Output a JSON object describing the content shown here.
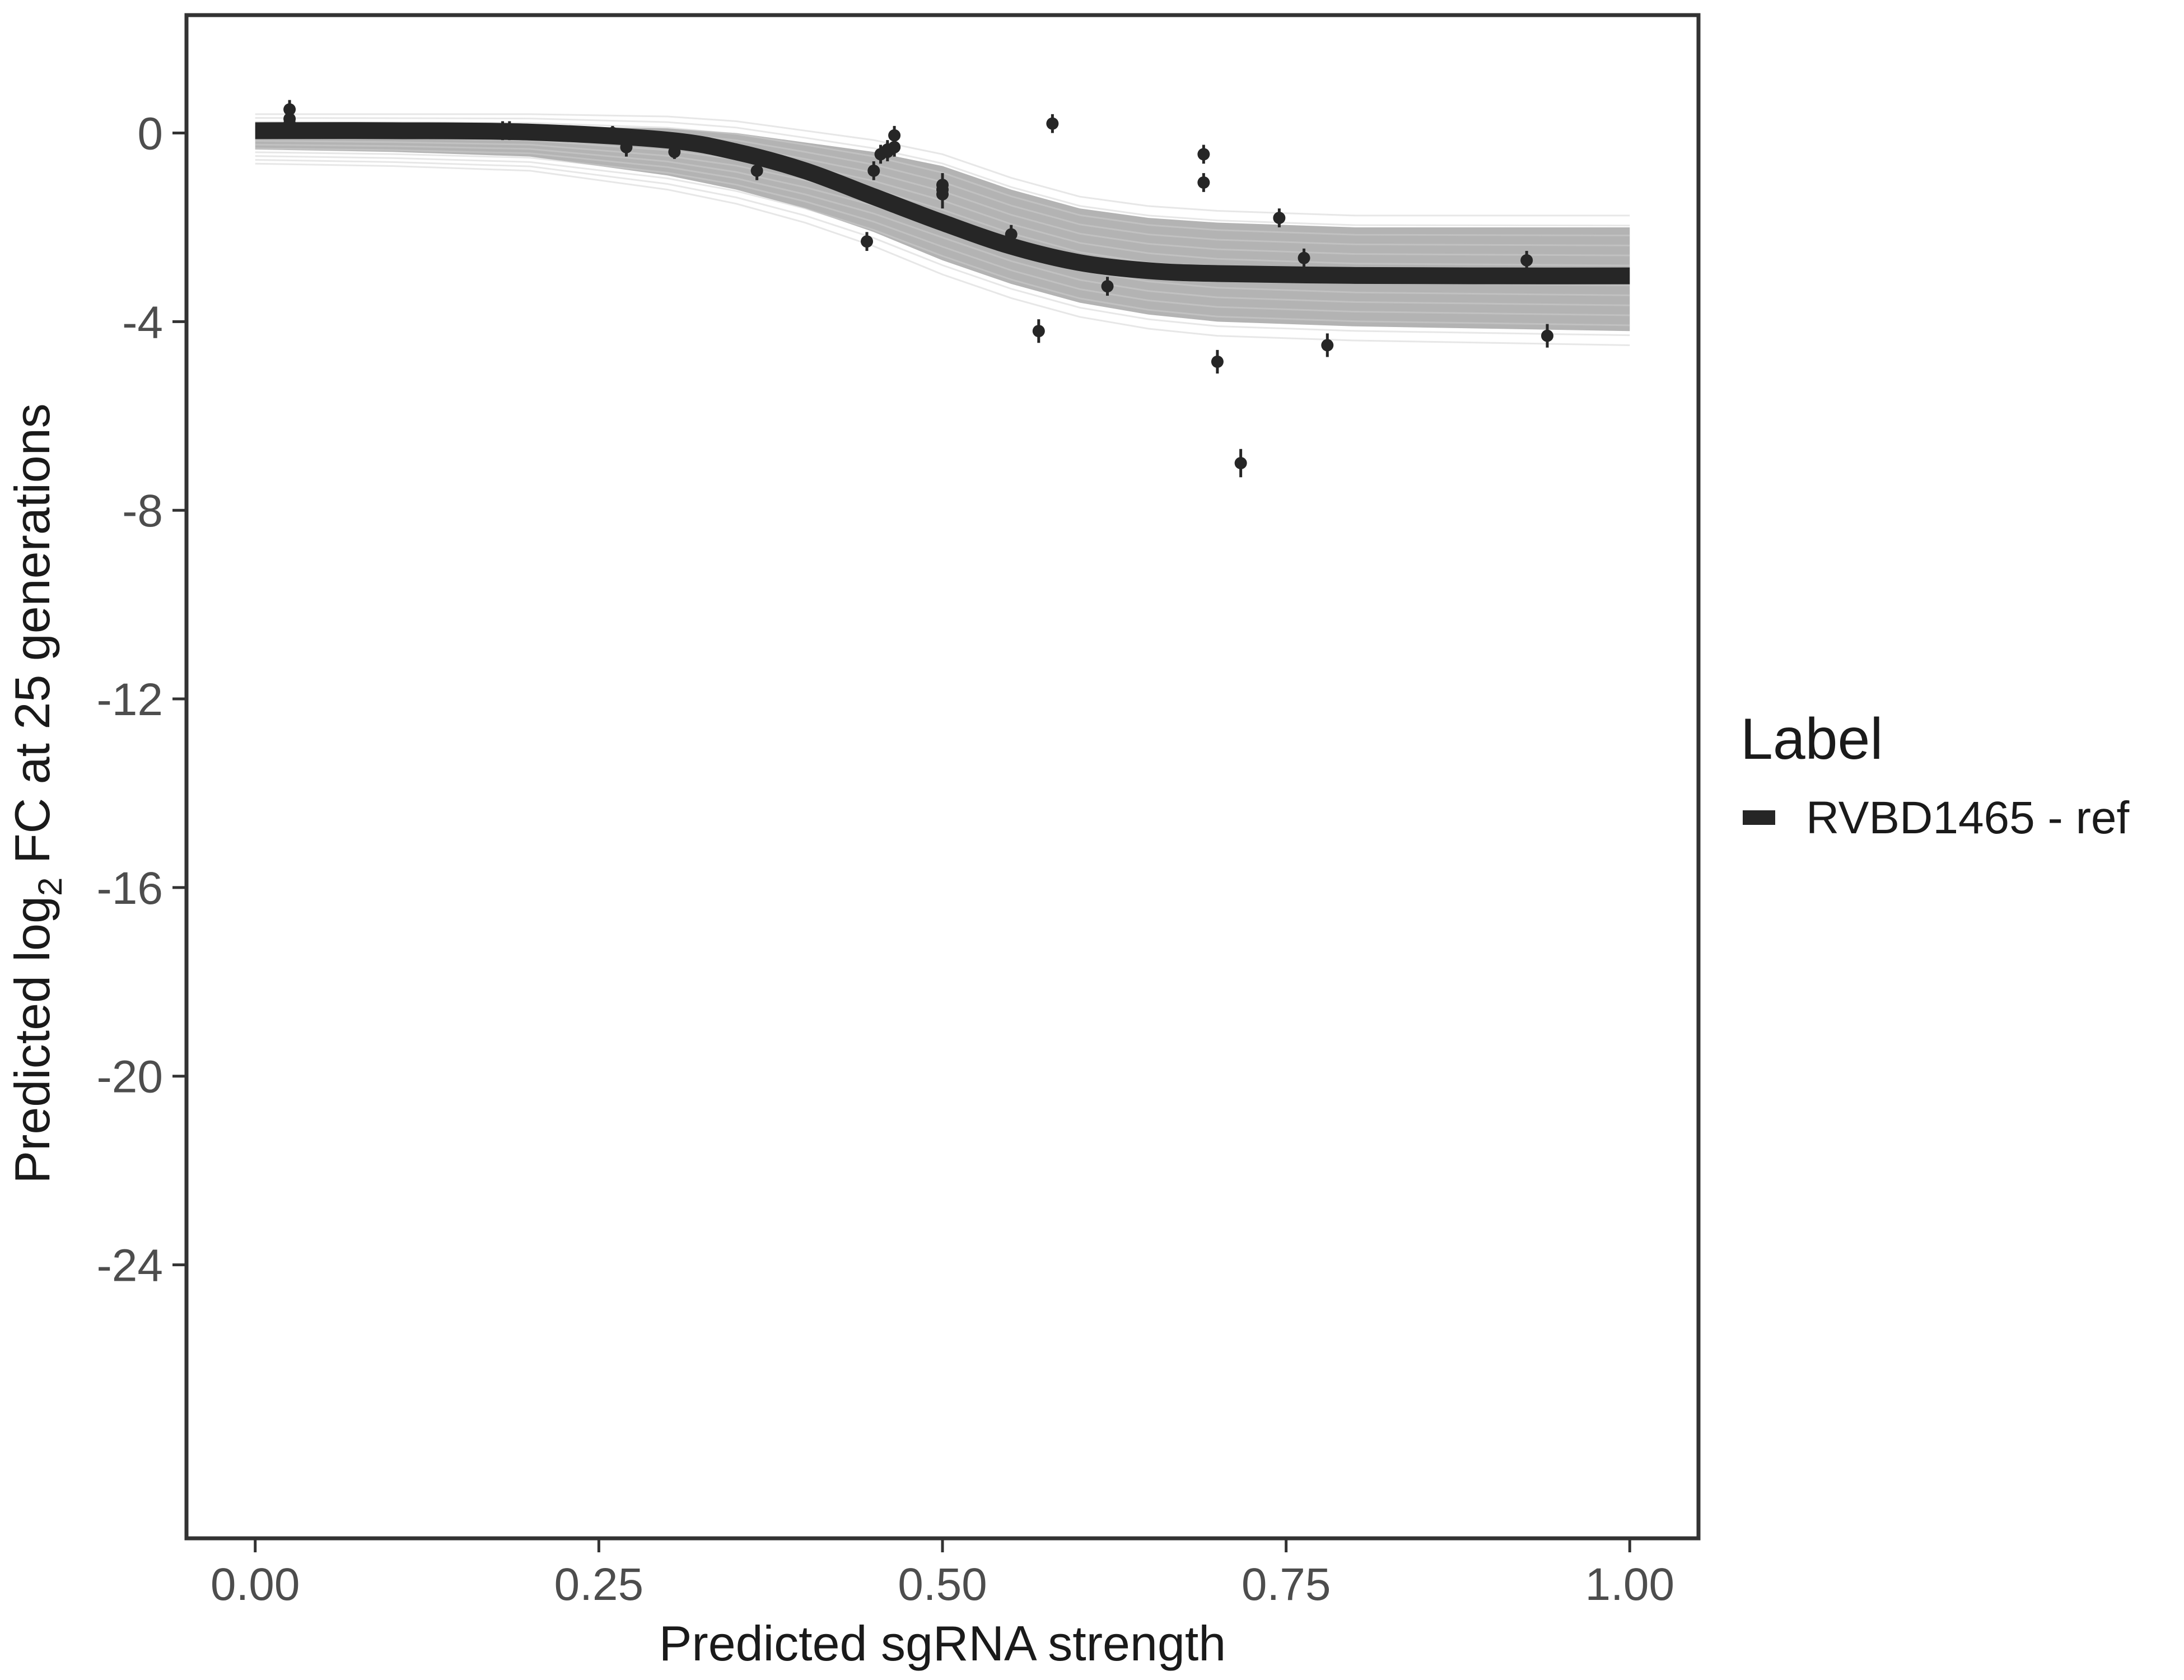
{
  "chart_data": {
    "type": "line",
    "xlabel": "Predicted sgRNA strength",
    "ylabel_prefix": "Predicted  log",
    "ylabel_subscript": "2",
    "ylabel_suffix": " FC at 25 generations",
    "xlim": [
      -0.05,
      1.05
    ],
    "ylim": [
      -29.8,
      2.5
    ],
    "x_ticks": [
      0,
      0.25,
      0.5,
      0.75,
      1
    ],
    "x_tick_labels": [
      "0.00",
      "0.25",
      "0.50",
      "0.75",
      "1.00"
    ],
    "y_ticks": [
      0,
      -4,
      -8,
      -12,
      -16,
      -20,
      -24
    ],
    "y_tick_labels": [
      "0",
      "-4",
      "-8",
      "-12",
      "-16",
      "-20",
      "-24"
    ],
    "grid": false,
    "legend": {
      "title": "Label",
      "position": "right",
      "entries": [
        {
          "label": "RVBD1465 - ref",
          "color": "#262626"
        }
      ]
    },
    "fit_curve": {
      "name": "RVBD1465 - ref",
      "color": "#262626",
      "x": [
        0,
        0.1,
        0.2,
        0.3,
        0.35,
        0.4,
        0.45,
        0.5,
        0.55,
        0.6,
        0.65,
        0.7,
        0.8,
        0.9,
        1.0
      ],
      "y": [
        0.05,
        0.05,
        0.02,
        -0.15,
        -0.4,
        -0.8,
        -1.35,
        -1.9,
        -2.4,
        -2.75,
        -2.92,
        -2.98,
        -3.02,
        -3.03,
        -3.03
      ]
    },
    "posterior_band": {
      "color": "#a6a6a6",
      "x": [
        0,
        0.1,
        0.2,
        0.3,
        0.35,
        0.4,
        0.45,
        0.5,
        0.55,
        0.6,
        0.65,
        0.7,
        0.8,
        0.9,
        1.0
      ],
      "upper": [
        0.15,
        0.15,
        0.15,
        0.1,
        0.0,
        -0.2,
        -0.4,
        -0.7,
        -1.2,
        -1.6,
        -1.8,
        -1.9,
        -2.0,
        -2.0,
        -2.0
      ],
      "lower": [
        -0.35,
        -0.4,
        -0.5,
        -0.9,
        -1.2,
        -1.6,
        -2.1,
        -2.7,
        -3.2,
        -3.6,
        -3.85,
        -4.0,
        -4.1,
        -4.15,
        -4.2
      ]
    },
    "points": {
      "color": "#262626",
      "x": [
        0.025,
        0.025,
        0.025,
        0.18,
        0.185,
        0.26,
        0.27,
        0.275,
        0.305,
        0.365,
        0.45,
        0.455,
        0.46,
        0.465,
        0.465,
        0.465,
        0.46,
        0.5,
        0.5,
        0.5,
        0.445,
        0.55,
        0.57,
        0.58,
        0.62,
        0.69,
        0.69,
        0.7,
        0.717,
        0.745,
        0.763,
        0.78,
        0.925,
        0.94
      ],
      "y": [
        0.5,
        0.3,
        0.2,
        0.05,
        0.05,
        0.0,
        -0.3,
        -0.1,
        -0.4,
        -0.8,
        -0.8,
        -0.45,
        -0.35,
        -0.3,
        -0.05,
        -0.3,
        -0.4,
        -1.1,
        -1.2,
        -1.3,
        -2.3,
        -2.15,
        -4.2,
        0.2,
        -3.25,
        -0.45,
        -1.05,
        -4.85,
        -7.0,
        -1.8,
        -2.65,
        -4.5,
        -2.7,
        -4.3
      ],
      "err": [
        0.2,
        0.2,
        0.2,
        0.2,
        0.2,
        0.15,
        0.2,
        0.15,
        0.15,
        0.2,
        0.2,
        0.2,
        0.2,
        0.2,
        0.2,
        0.2,
        0.2,
        0.25,
        0.25,
        0.3,
        0.2,
        0.2,
        0.25,
        0.2,
        0.2,
        0.2,
        0.2,
        0.25,
        0.3,
        0.2,
        0.2,
        0.25,
        0.2,
        0.25
      ]
    }
  }
}
